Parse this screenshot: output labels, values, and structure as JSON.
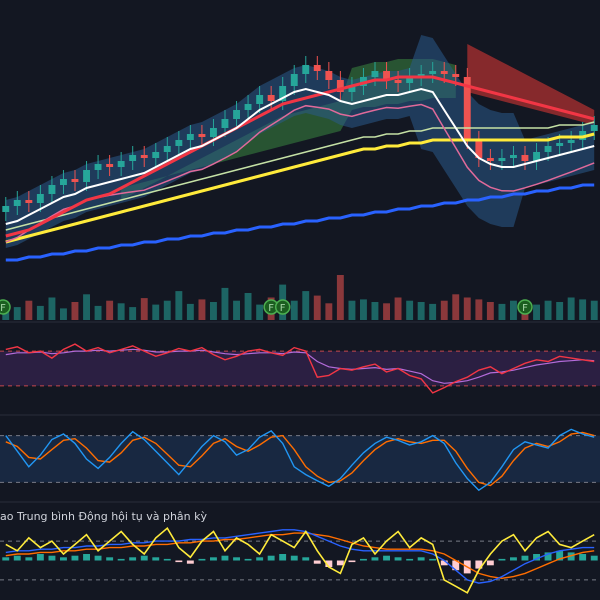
{
  "colors": {
    "background": "#131722",
    "up": "#26a69a",
    "down": "#ef5350",
    "white_ma": "#ffffff",
    "red_ma": "#f23645",
    "yellow_ma": "#ffeb3b",
    "blue_ma": "#2962ff",
    "pink_ma": "#e06a9a",
    "light_ma": "#c5e1a5",
    "bb_fill": "#2a5a8a",
    "ichimoku_green": "#43a047",
    "ichimoku_red": "#e53935",
    "rsi_band": "#4a2a6a",
    "stoch_band": "#1e3a5f",
    "macd_line": "#2962ff",
    "macd_signal": "#ff6d00",
    "yellow_osc": "#ffeb3b"
  },
  "price_panel": {
    "close": [
      48,
      50,
      49,
      52,
      55,
      57,
      56,
      60,
      62,
      61,
      63,
      65,
      64,
      66,
      68,
      70,
      72,
      71,
      74,
      77,
      80,
      82,
      85,
      83,
      88,
      92,
      95,
      93,
      90,
      86,
      88,
      91,
      93,
      90,
      89,
      91,
      92,
      93,
      92,
      91,
      70,
      64,
      63,
      64,
      65,
      63,
      66,
      68,
      69,
      70,
      73,
      75
    ],
    "white_ma": [
      42,
      43,
      45,
      47,
      49,
      51,
      52,
      54,
      55,
      56,
      57,
      58,
      59,
      61,
      63,
      65,
      67,
      68,
      70,
      72,
      74,
      77,
      80,
      82,
      84,
      86,
      87,
      86,
      85,
      83,
      82,
      83,
      84,
      85,
      85,
      86,
      87,
      86,
      80,
      74,
      68,
      64,
      62,
      61,
      61,
      62,
      63,
      64,
      65,
      66,
      67,
      68
    ],
    "red_ma": [
      38,
      39,
      40,
      42,
      44,
      46,
      48,
      50,
      51,
      52,
      54,
      56,
      58,
      60,
      62,
      64,
      66,
      68,
      70,
      72,
      74,
      76,
      78,
      80,
      82,
      83,
      84,
      85,
      86,
      87,
      88,
      89,
      90,
      90,
      91,
      91,
      91,
      91,
      90,
      89,
      88,
      87,
      86,
      85,
      84,
      83,
      82,
      81,
      80,
      79,
      78,
      77
    ],
    "yellow_ma": [
      36,
      37,
      38,
      39,
      40,
      41,
      42,
      43,
      44,
      45,
      46,
      47,
      48,
      49,
      50,
      51,
      52,
      53,
      54,
      55,
      56,
      57,
      58,
      59,
      60,
      61,
      62,
      63,
      64,
      65,
      66,
      67,
      67,
      68,
      68,
      69,
      69,
      70,
      70,
      70,
      70,
      70,
      70,
      70,
      70,
      70,
      70,
      70,
      71,
      71,
      71,
      72
    ],
    "blue_ma": [
      30,
      30,
      31,
      31,
      32,
      32,
      33,
      33,
      34,
      34,
      35,
      35,
      36,
      36,
      37,
      37,
      38,
      38,
      39,
      39,
      40,
      40,
      41,
      41,
      42,
      42,
      43,
      43,
      44,
      44,
      45,
      45,
      46,
      46,
      47,
      47,
      48,
      48,
      49,
      49,
      50,
      50,
      51,
      51,
      52,
      52,
      53,
      53,
      54,
      54,
      55,
      55
    ],
    "volume": [
      25,
      20,
      30,
      22,
      35,
      18,
      28,
      40,
      22,
      30,
      26,
      20,
      34,
      24,
      30,
      45,
      25,
      32,
      28,
      50,
      30,
      42,
      24,
      35,
      55,
      30,
      45,
      38,
      26,
      70,
      30,
      32,
      28,
      26,
      35,
      30,
      28,
      25,
      30,
      40,
      35,
      32,
      28,
      25,
      30,
      26,
      24,
      30,
      28,
      35,
      32,
      30
    ],
    "signal_markers": [
      {
        "label": "F"
      },
      {
        "label": "F"
      },
      {
        "label": "F"
      },
      {
        "label": "F"
      }
    ]
  },
  "rsi_panel": {
    "rsi": [
      72,
      75,
      68,
      70,
      62,
      72,
      78,
      70,
      74,
      68,
      72,
      76,
      70,
      64,
      68,
      73,
      70,
      74,
      66,
      60,
      64,
      70,
      72,
      68,
      65,
      74,
      70,
      40,
      42,
      50,
      48,
      52,
      55,
      46,
      50,
      42,
      38,
      22,
      28,
      35,
      40,
      48,
      52,
      44,
      50,
      56,
      60,
      58,
      64,
      62,
      60,
      58
    ],
    "rsi_ma": [
      66,
      68,
      68,
      69,
      67,
      68,
      70,
      70,
      71,
      70,
      71,
      72,
      71,
      69,
      69,
      70,
      70,
      71,
      69,
      67,
      66,
      67,
      68,
      68,
      67,
      69,
      68,
      58,
      52,
      50,
      49,
      50,
      51,
      49,
      50,
      47,
      44,
      36,
      33,
      34,
      36,
      40,
      45,
      46,
      48,
      51,
      54,
      56,
      58,
      59,
      60,
      59
    ],
    "band": [
      30,
      70
    ]
  },
  "stoch_panel": {
    "k": [
      80,
      60,
      40,
      55,
      75,
      82,
      70,
      50,
      38,
      52,
      70,
      85,
      75,
      60,
      45,
      30,
      48,
      66,
      80,
      72,
      55,
      62,
      78,
      86,
      70,
      40,
      30,
      22,
      15,
      25,
      42,
      58,
      70,
      78,
      74,
      68,
      72,
      80,
      70,
      45,
      25,
      10,
      20,
      40,
      62,
      72,
      68,
      64,
      80,
      88,
      82,
      78
    ],
    "d": [
      72,
      66,
      52,
      50,
      62,
      74,
      76,
      64,
      48,
      46,
      58,
      74,
      78,
      70,
      56,
      42,
      40,
      54,
      70,
      76,
      66,
      60,
      68,
      78,
      80,
      62,
      40,
      28,
      20,
      22,
      32,
      48,
      62,
      72,
      76,
      72,
      70,
      74,
      74,
      60,
      38,
      20,
      16,
      28,
      48,
      64,
      70,
      66,
      72,
      82,
      84,
      80
    ],
    "band": [
      20,
      80
    ]
  },
  "macd_panel": {
    "title": "ao Trung bình Động hội tụ và phân kỳ",
    "hist": [
      2,
      3,
      2,
      4,
      3,
      2,
      3,
      4,
      3,
      2,
      1,
      2,
      3,
      2,
      1,
      -1,
      -2,
      1,
      2,
      3,
      2,
      1,
      2,
      3,
      4,
      3,
      2,
      -2,
      -4,
      -3,
      -1,
      1,
      2,
      3,
      2,
      1,
      2,
      1,
      -3,
      -6,
      -8,
      -5,
      -3,
      1,
      2,
      3,
      4,
      5,
      6,
      5,
      4,
      3
    ],
    "macd": [
      5,
      6,
      6,
      7,
      7,
      8,
      8,
      9,
      9,
      10,
      10,
      11,
      11,
      12,
      12,
      12,
      13,
      13,
      14,
      14,
      15,
      16,
      17,
      18,
      19,
      19,
      18,
      15,
      12,
      9,
      7,
      6,
      6,
      6,
      6,
      6,
      6,
      4,
      0,
      -6,
      -12,
      -14,
      -13,
      -10,
      -6,
      -2,
      1,
      4,
      6,
      7,
      8,
      8
    ],
    "signal": [
      3,
      4,
      4,
      5,
      5,
      6,
      6,
      7,
      7,
      8,
      8,
      9,
      9,
      10,
      10,
      11,
      11,
      12,
      12,
      13,
      13,
      14,
      15,
      16,
      16,
      17,
      17,
      16,
      15,
      13,
      11,
      9,
      8,
      7,
      7,
      7,
      7,
      6,
      4,
      0,
      -4,
      -8,
      -10,
      -11,
      -10,
      -8,
      -5,
      -2,
      1,
      3,
      5,
      6
    ],
    "osc": [
      10,
      6,
      14,
      8,
      12,
      4,
      10,
      16,
      6,
      12,
      18,
      10,
      4,
      14,
      20,
      8,
      2,
      12,
      18,
      6,
      14,
      10,
      4,
      16,
      12,
      8,
      18,
      6,
      -4,
      -8,
      10,
      14,
      4,
      12,
      18,
      8,
      14,
      10,
      -12,
      -16,
      -20,
      -6,
      4,
      12,
      16,
      6,
      14,
      18,
      10,
      8,
      12,
      16
    ]
  },
  "chart_data": [
    {
      "type": "candlestick",
      "title": "",
      "xlabel": "",
      "ylabel": "",
      "series": [
        {
          "values": "price_panel.close"
        }
      ],
      "grid": false
    },
    {
      "type": "bar",
      "title": "",
      "series": [
        {
          "values": "price_panel.volume"
        }
      ]
    },
    {
      "type": "line",
      "title": "",
      "series": [
        {
          "values": "rsi_panel.rsi"
        },
        {
          "values": "rsi_panel.rsi_ma"
        }
      ],
      "ylim": [
        0,
        100
      ]
    },
    {
      "type": "line",
      "title": "",
      "series": [
        {
          "values": "stoch_panel.k"
        },
        {
          "values": "stoch_panel.d"
        }
      ],
      "ylim": [
        0,
        100
      ]
    },
    {
      "type": "bar",
      "title": "ao Trung bình Động hội tụ và phân kỳ",
      "series": [
        {
          "values": "macd_panel.hist"
        },
        {
          "values": "macd_panel.macd"
        },
        {
          "values": "macd_panel.signal"
        }
      ]
    }
  ]
}
